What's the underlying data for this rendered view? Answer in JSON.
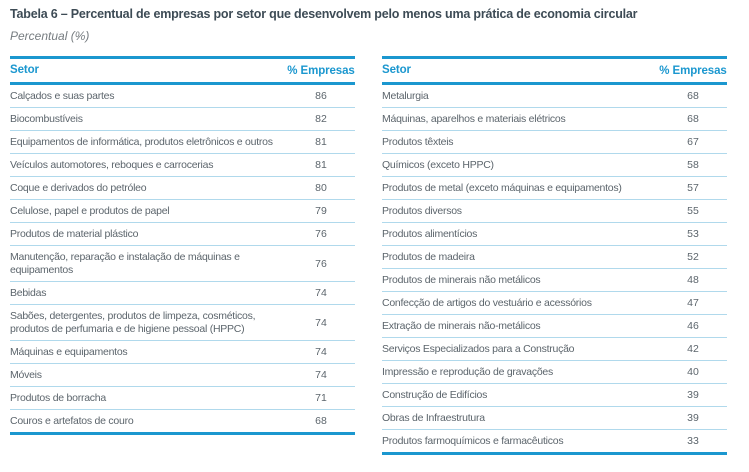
{
  "page": {
    "title": "Tabela 6 – Percentual de empresas por setor que desenvolvem pelo menos uma prática de economia circular",
    "subtitle": "Percentual (%)"
  },
  "colors": {
    "accent_blue": "#1b97cf",
    "separator_light_blue": "#b0d9ec",
    "body_text": "#5c656c",
    "title_text": "#3d4b55",
    "subtitle_text": "#767c80"
  },
  "tables": [
    {
      "header": {
        "sector": "Setor",
        "value": "% Empresas"
      },
      "rows": [
        {
          "sector": "Calçados e suas partes",
          "value": "86"
        },
        {
          "sector": "Biocombustíveis",
          "value": "82"
        },
        {
          "sector": "Equipamentos de informática, produtos eletrônicos e outros",
          "value": "81"
        },
        {
          "sector": "Veículos automotores, reboques e carrocerias",
          "value": "81"
        },
        {
          "sector": "Coque e derivados do petróleo",
          "value": "80"
        },
        {
          "sector": "Celulose, papel e produtos de papel",
          "value": "79"
        },
        {
          "sector": "Produtos de material plástico",
          "value": "76"
        },
        {
          "sector": "Manutenção, reparação e instalação de máquinas e equipamentos",
          "value": "76"
        },
        {
          "sector": "Bebidas",
          "value": "74"
        },
        {
          "sector": "Sabões, detergentes, produtos de limpeza, cosméticos, produtos de perfumaria e de higiene pessoal (HPPC)",
          "value": "74"
        },
        {
          "sector": "Máquinas e equipamentos",
          "value": "74"
        },
        {
          "sector": "Móveis",
          "value": "74"
        },
        {
          "sector": "Produtos de borracha",
          "value": "71"
        },
        {
          "sector": "Couros e artefatos de couro",
          "value": "68"
        }
      ]
    },
    {
      "header": {
        "sector": "Setor",
        "value": "% Empresas"
      },
      "rows": [
        {
          "sector": "Metalurgia",
          "value": "68"
        },
        {
          "sector": "Máquinas, aparelhos e materiais elétricos",
          "value": "68"
        },
        {
          "sector": "Produtos têxteis",
          "value": "67"
        },
        {
          "sector": "Químicos (exceto HPPC)",
          "value": "58"
        },
        {
          "sector": "Produtos de metal (exceto máquinas e equipamentos)",
          "value": "57"
        },
        {
          "sector": "Produtos diversos",
          "value": "55"
        },
        {
          "sector": "Produtos alimentícios",
          "value": "53"
        },
        {
          "sector": "Produtos de madeira",
          "value": "52"
        },
        {
          "sector": "Produtos de minerais não metálicos",
          "value": "48"
        },
        {
          "sector": "Confecção de artigos do vestuário e acessórios",
          "value": "47"
        },
        {
          "sector": "Extração de minerais não-metálicos",
          "value": "46"
        },
        {
          "sector": "Serviços Especializados para a Construção",
          "value": "42"
        },
        {
          "sector": "Impressão e reprodução de gravações",
          "value": "40"
        },
        {
          "sector": "Construção de Edifícios",
          "value": "39"
        },
        {
          "sector": "Obras de Infraestrutura",
          "value": "39"
        },
        {
          "sector": "Produtos farmoquímicos e farmacêuticos",
          "value": "33"
        }
      ]
    }
  ]
}
